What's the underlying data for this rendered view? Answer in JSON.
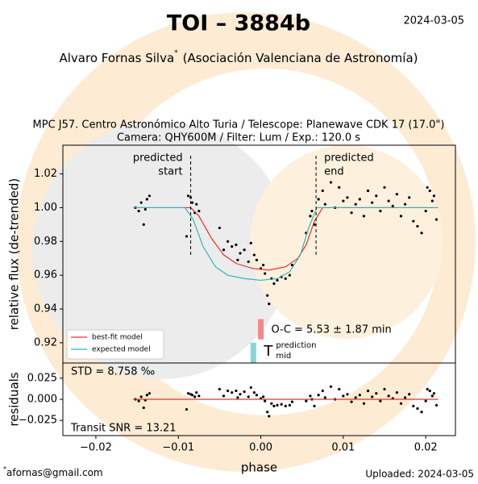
{
  "title": "TOI – 3884b",
  "date": "2024-03-05",
  "author": "Alvaro Fornas Silva",
  "author_mark": "*",
  "affiliation": "(Asociación Valenciana de Astronomía)",
  "subtitle": [
    "MPC J57. Centro Astronómico Alto Turia / Telescope: Planewave CDK 17 (17.0\")",
    "Camera: QHY600M / Filter: Lum / Exp.: 120.0 s"
  ],
  "email": "afornas@gmail.com",
  "uploaded": "Uploaded: 2024-03-05",
  "chart_data": [
    {
      "type": "scatter",
      "ylabel": "relative flux (de-trended)",
      "xlim": [
        -0.024,
        0.0236
      ],
      "ylim": [
        0.908,
        1.037
      ],
      "yticks": [
        1.02,
        {
          "value": 1.0,
          "label": "1.00"
        },
        0.98,
        0.96,
        0.94,
        0.92
      ],
      "series": [
        {
          "color": "#000000",
          "x": [
            -0.0152,
            -0.0148,
            -0.0145,
            -0.0142,
            -0.014,
            -0.0138,
            -0.0135,
            -0.009,
            -0.0088,
            -0.0085,
            -0.0083,
            -0.008,
            -0.0078,
            -0.0075,
            -0.005,
            -0.0045,
            -0.004,
            -0.0035,
            -0.003,
            -0.0028,
            -0.0025,
            -0.002,
            -0.0015,
            -0.0012,
            -0.0008,
            -0.0005,
            0.0,
            0.0003,
            0.0005,
            0.0008,
            0.001,
            0.0013,
            0.0016,
            0.002,
            0.0025,
            0.003,
            0.0035,
            0.0038,
            0.0055,
            0.006,
            0.0062,
            0.0065,
            0.007,
            0.0075,
            0.0078,
            0.0085,
            0.009,
            0.0095,
            0.01,
            0.0105,
            0.011,
            0.0115,
            0.012,
            0.0125,
            0.013,
            0.0135,
            0.014,
            0.0145,
            0.015,
            0.0155,
            0.016,
            0.0165,
            0.017,
            0.0175,
            0.018,
            0.0185,
            0.019,
            0.0195,
            0.02,
            0.0205,
            0.021,
            0.0213,
            0.0202,
            0.0208
          ],
          "values": [
            1.0,
            0.998,
            1.003,
            0.99,
            0.999,
            1.005,
            1.007,
            0.983,
            1.007,
            1.006,
            1.003,
            0.997,
            1.002,
            0.998,
            0.988,
            0.975,
            0.98,
            0.977,
            0.978,
            0.969,
            0.973,
            0.975,
            0.968,
            0.979,
            0.972,
            0.969,
            0.964,
            0.966,
            0.961,
            0.948,
            0.943,
            0.958,
            0.955,
            0.957,
            0.959,
            0.958,
            0.96,
            0.966,
            0.985,
            0.995,
            0.998,
            0.99,
            1.005,
            1.01,
            1.002,
            1.015,
            1.0,
            1.012,
            1.004,
            1.006,
            0.997,
            1.002,
            1.005,
            0.995,
            1.01,
            1.003,
            1.007,
            0.998,
            1.012,
            1.004,
            1.001,
            1.008,
            0.995,
            1.002,
            1.006,
            0.992,
            0.989,
            0.985,
            0.998,
            1.01,
            1.007,
            0.993,
            1.012,
            1.004
          ]
        },
        {
          "name": "best-fit model",
          "color": "#e8302a",
          "line": true,
          "x": [
            -0.0155,
            -0.0085,
            -0.0075,
            -0.006,
            -0.0045,
            -0.003,
            -0.001,
            0.001,
            0.003,
            0.0045,
            0.0055,
            0.0065,
            0.0075,
            0.0215
          ],
          "values": [
            1.0,
            1.0,
            0.995,
            0.982,
            0.972,
            0.967,
            0.964,
            0.963,
            0.965,
            0.97,
            0.978,
            0.992,
            1.0,
            1.0
          ]
        },
        {
          "name": "expected model",
          "color": "#2ab8b8",
          "line": true,
          "x": [
            -0.0155,
            -0.0092,
            -0.0082,
            -0.007,
            -0.0055,
            -0.004,
            -0.002,
            0.0,
            0.002,
            0.0035,
            0.0048,
            0.0058,
            0.0068,
            0.0215
          ],
          "values": [
            1.0,
            1.0,
            0.993,
            0.977,
            0.965,
            0.96,
            0.958,
            0.957,
            0.958,
            0.962,
            0.972,
            0.988,
            1.0,
            1.0
          ]
        }
      ],
      "predicted_start": {
        "x": -0.0085,
        "y": [
          0.972,
          1.032
        ],
        "label": [
          "predicted",
          "start"
        ]
      },
      "predicted_end": {
        "x": 0.0067,
        "y": [
          0.972,
          1.032
        ],
        "label": [
          "predicted",
          "end"
        ]
      },
      "oc_marker": {
        "x": 0.0,
        "y": [
          0.922,
          0.934
        ],
        "color": "#f08a8a",
        "label": "O-C = 5.53 ± 1.87 min"
      },
      "prediction_marker": {
        "x": -0.0009,
        "y": [
          0.908,
          0.92
        ],
        "color": "#86d6d6",
        "label": "T",
        "sup": "prediction",
        "sub": "mid"
      },
      "legend": "lower left"
    },
    {
      "type": "scatter",
      "ylabel": "residuals",
      "xlabel": "phase",
      "xlim": [
        -0.024,
        0.0236
      ],
      "ylim": [
        -0.043,
        0.043
      ],
      "xticks": [
        {
          "value": -0.02,
          "label": "−0.02"
        },
        {
          "value": -0.01,
          "label": "−0.01"
        },
        {
          "value": 0,
          "label": "0.00"
        },
        0.01,
        0.02
      ],
      "yticks": [
        0.025,
        {
          "value": 0,
          "label": "0.000"
        },
        {
          "value": -0.025,
          "label": "−0.025"
        }
      ],
      "series": [
        {
          "color": "#000000",
          "x": [
            -0.0152,
            -0.0148,
            -0.0145,
            -0.0142,
            -0.014,
            -0.0138,
            -0.0135,
            -0.009,
            -0.0088,
            -0.0085,
            -0.0083,
            -0.008,
            -0.0078,
            -0.0075,
            -0.005,
            -0.0045,
            -0.004,
            -0.0035,
            -0.003,
            -0.0028,
            -0.0025,
            -0.002,
            -0.0015,
            -0.0012,
            -0.0008,
            -0.0005,
            0.0,
            0.0003,
            0.0005,
            0.0008,
            0.001,
            0.0013,
            0.0016,
            0.002,
            0.0025,
            0.003,
            0.0035,
            0.0038,
            0.0055,
            0.006,
            0.0062,
            0.0065,
            0.007,
            0.0075,
            0.0078,
            0.0085,
            0.009,
            0.0095,
            0.01,
            0.0105,
            0.011,
            0.0115,
            0.012,
            0.0125,
            0.013,
            0.0135,
            0.014,
            0.0145,
            0.015,
            0.0155,
            0.016,
            0.0165,
            0.017,
            0.0175,
            0.018,
            0.0185,
            0.019,
            0.0195,
            0.02,
            0.0205,
            0.021,
            0.0213,
            0.0202,
            0.0208
          ],
          "values": [
            0.0,
            -0.002,
            0.003,
            -0.01,
            -0.001,
            0.005,
            0.007,
            -0.012,
            0.007,
            0.006,
            0.005,
            0.003,
            0.008,
            0.004,
            0.012,
            0.004,
            0.01,
            0.008,
            0.01,
            0.002,
            0.006,
            0.009,
            0.003,
            0.014,
            0.008,
            0.005,
            0.001,
            0.003,
            -0.002,
            -0.015,
            -0.02,
            -0.005,
            -0.008,
            -0.007,
            -0.006,
            -0.008,
            -0.007,
            -0.003,
            -0.002,
            0.004,
            0.0,
            -0.008,
            0.005,
            0.01,
            0.002,
            0.015,
            0.0,
            0.012,
            0.004,
            0.006,
            -0.003,
            0.002,
            0.005,
            -0.005,
            0.01,
            0.003,
            0.007,
            -0.002,
            0.012,
            0.004,
            0.001,
            0.008,
            -0.005,
            0.002,
            0.006,
            -0.008,
            -0.011,
            -0.015,
            -0.002,
            0.01,
            0.007,
            -0.007,
            0.012,
            0.004
          ]
        },
        {
          "color": "#e8302a",
          "line": true,
          "x": [
            -0.0155,
            0.0215
          ],
          "values": [
            0,
            0
          ]
        }
      ],
      "std": "STD = 8.758 ‰",
      "snr": "Transit SNR = 13.21"
    }
  ]
}
